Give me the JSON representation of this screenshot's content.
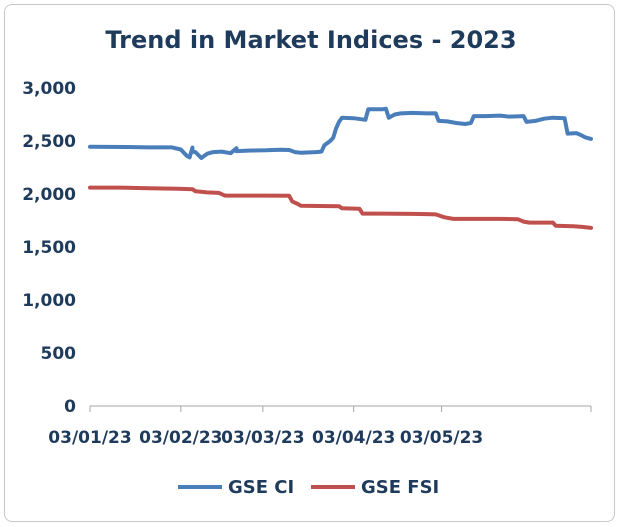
{
  "chart_data": {
    "type": "line",
    "title": "Trend in Market Indices - 2023",
    "xlabel": "",
    "ylabel": "",
    "ylim": [
      0,
      3000
    ],
    "yticks": [
      "0",
      "500",
      "1,000",
      "1,500",
      "2,000",
      "2,500",
      "3,000"
    ],
    "xticks": [
      "03/01/23",
      "03/02/23",
      "03/03/23",
      "03/04/23",
      "03/05/23"
    ],
    "xlim_days": [
      0,
      171
    ],
    "legend_position": "bottom",
    "grid": false,
    "series": [
      {
        "name": "GSE CI",
        "color": "#4a7ebb",
        "points": [
          [
            0,
            2445
          ],
          [
            12,
            2443
          ],
          [
            20,
            2440
          ],
          [
            35,
            2438
          ],
          [
            50,
            2432
          ],
          [
            28,
            2440
          ],
          [
            31,
            2420
          ],
          [
            33,
            2360
          ],
          [
            34,
            2345
          ],
          [
            35,
            2400
          ],
          [
            36,
            2395
          ],
          [
            38,
            2340
          ],
          [
            40,
            2380
          ],
          [
            42,
            2395
          ],
          [
            45,
            2400
          ],
          [
            48,
            2385
          ],
          [
            50,
            2405
          ],
          [
            55,
            2410
          ],
          [
            60,
            2412
          ],
          [
            65,
            2418
          ],
          [
            68,
            2415
          ],
          [
            70,
            2395
          ],
          [
            72,
            2390
          ],
          [
            77,
            2395
          ],
          [
            79,
            2400
          ],
          [
            80,
            2460
          ],
          [
            82,
            2500
          ],
          [
            83,
            2530
          ],
          [
            84,
            2620
          ],
          [
            85,
            2680
          ],
          [
            86,
            2720
          ],
          [
            90,
            2715
          ],
          [
            94,
            2700
          ],
          [
            95,
            2800
          ],
          [
            100,
            2800
          ],
          [
            101,
            2805
          ],
          [
            102,
            2720
          ],
          [
            104,
            2750
          ],
          [
            106,
            2760
          ],
          [
            110,
            2765
          ],
          [
            115,
            2760
          ],
          [
            118,
            2762
          ],
          [
            119,
            2690
          ],
          [
            122,
            2685
          ],
          [
            125,
            2670
          ],
          [
            128,
            2660
          ],
          [
            130,
            2670
          ],
          [
            131,
            2735
          ],
          [
            135,
            2735
          ],
          [
            140,
            2740
          ],
          [
            143,
            2730
          ],
          [
            148,
            2735
          ],
          [
            149,
            2680
          ],
          [
            152,
            2690
          ],
          [
            155,
            2710
          ],
          [
            158,
            2720
          ],
          [
            162,
            2715
          ],
          [
            163,
            2570
          ],
          [
            166,
            2575
          ],
          [
            168,
            2550
          ],
          [
            169,
            2535
          ],
          [
            171,
            2520
          ]
        ]
      },
      {
        "name": "GSE FSI",
        "color": "#c0504d",
        "points": [
          [
            0,
            2060
          ],
          [
            10,
            2060
          ],
          [
            20,
            2055
          ],
          [
            30,
            2050
          ],
          [
            35,
            2045
          ],
          [
            36,
            2025
          ],
          [
            40,
            2015
          ],
          [
            44,
            2010
          ],
          [
            46,
            1985
          ],
          [
            50,
            1985
          ],
          [
            60,
            1985
          ],
          [
            68,
            1983
          ],
          [
            69,
            1930
          ],
          [
            71,
            1905
          ],
          [
            72,
            1890
          ],
          [
            85,
            1885
          ],
          [
            86,
            1865
          ],
          [
            92,
            1860
          ],
          [
            93,
            1815
          ],
          [
            100,
            1815
          ],
          [
            110,
            1812
          ],
          [
            115,
            1810
          ],
          [
            118,
            1808
          ],
          [
            121,
            1780
          ],
          [
            124,
            1765
          ],
          [
            130,
            1765
          ],
          [
            140,
            1765
          ],
          [
            146,
            1762
          ],
          [
            148,
            1740
          ],
          [
            150,
            1730
          ],
          [
            155,
            1730
          ],
          [
            158,
            1730
          ],
          [
            159,
            1700
          ],
          [
            165,
            1695
          ],
          [
            168,
            1690
          ],
          [
            171,
            1680
          ]
        ]
      }
    ]
  }
}
